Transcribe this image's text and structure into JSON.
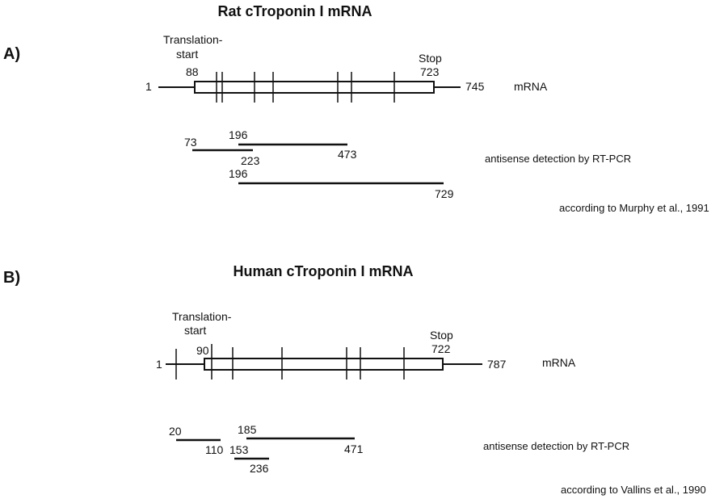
{
  "panels": [
    {
      "letter": "A)",
      "title": "Rat cTroponin I mRNA",
      "translation_label_line1": "Translation-",
      "translation_label_line2": "start",
      "start_position": "88",
      "stop_label": "Stop",
      "stop_position": "723",
      "mrna_start": "1",
      "mrna_end": "745",
      "mrna_label": "mRNA",
      "fragments": [
        {
          "from": "73",
          "to": "223"
        },
        {
          "from": "196",
          "to": "473"
        },
        {
          "from": "196",
          "to": "729"
        }
      ],
      "method": "antisense detection by RT-PCR",
      "citation": "according to Murphy et al., 1991"
    },
    {
      "letter": "B)",
      "title": "Human cTroponin I mRNA",
      "translation_label_line1": "Translation-",
      "translation_label_line2": "start",
      "start_position": "90",
      "stop_label": "Stop",
      "stop_position": "722",
      "mrna_start": "1",
      "mrna_end": "787",
      "mrna_label": "mRNA",
      "fragments": [
        {
          "from": "20",
          "to": "110"
        },
        {
          "from": "185",
          "to": "471"
        },
        {
          "from": "153",
          "to": "236"
        }
      ],
      "method": "antisense detection by RT-PCR",
      "citation": "according to Vallins et al., 1990"
    }
  ]
}
